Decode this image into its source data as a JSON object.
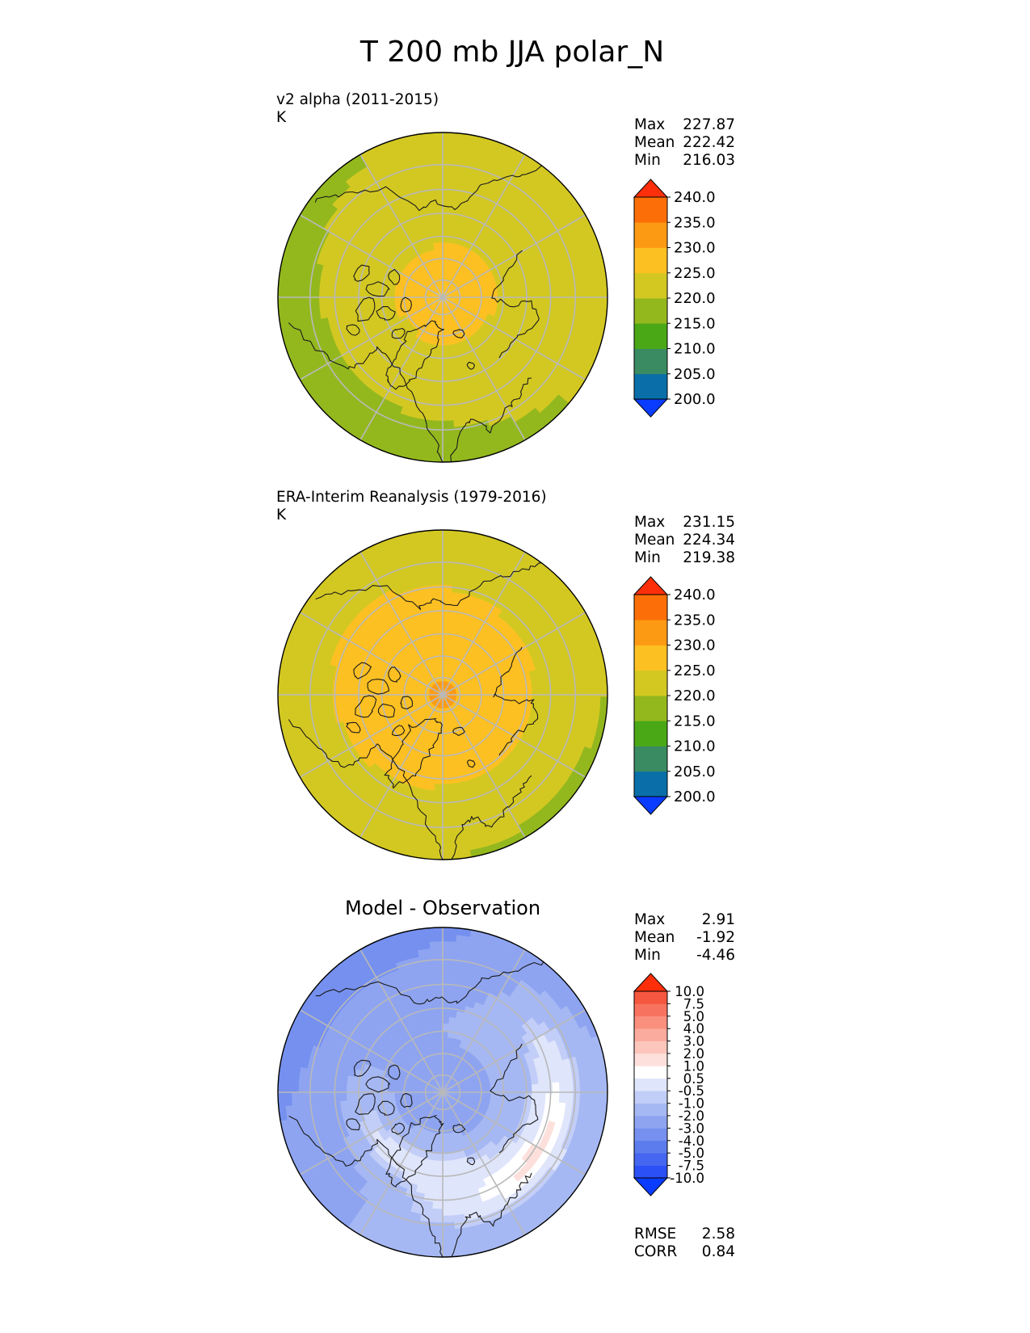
{
  "title": "T 200 mb JJA polar_N",
  "panels": [
    {
      "label_line1": "v2 alpha (2011-2015)",
      "label_line2": "K",
      "stats": [
        {
          "name": "Max",
          "value": "227.87"
        },
        {
          "name": "Mean",
          "value": "222.42"
        },
        {
          "name": "Min",
          "value": "216.03"
        }
      ]
    },
    {
      "label_line1": "ERA-Interim Reanalysis (1979-2016)",
      "label_line2": "K",
      "stats": [
        {
          "name": "Max",
          "value": "231.15"
        },
        {
          "name": "Mean",
          "value": "224.34"
        },
        {
          "name": "Min",
          "value": "219.38"
        }
      ]
    },
    {
      "title": "Model - Observation",
      "stats": [
        {
          "name": "Max",
          "value": "2.91"
        },
        {
          "name": "Mean",
          "value": "-1.92"
        },
        {
          "name": "Min",
          "value": "-4.46"
        }
      ],
      "metrics": [
        {
          "name": "RMSE",
          "value": "2.58"
        },
        {
          "name": "CORR",
          "value": "0.84"
        }
      ]
    }
  ],
  "chart_data": [
    {
      "type": "heatmap",
      "projection": "north polar stereographic",
      "title": "v2 alpha (2011-2015)",
      "units": "K",
      "levels": [
        200,
        205,
        210,
        215,
        220,
        225,
        230,
        235,
        240
      ],
      "colorbar_tick_labels": [
        "200.0",
        "205.0",
        "210.0",
        "215.0",
        "220.0",
        "225.0",
        "230.0",
        "235.0",
        "240.0"
      ],
      "colors": [
        "#0a3cff",
        "#0a6fa8",
        "#3a8a62",
        "#4aa817",
        "#93b81e",
        "#d3c822",
        "#fdc022",
        "#fd9a13",
        "#fc6f08",
        "#fd2f0a"
      ],
      "field": {
        "center_value": 227.5,
        "outer_value": 219.5,
        "amplitude": 3.0,
        "phase_deg": 140
      },
      "max": 227.87,
      "mean": 222.42,
      "min": 216.03
    },
    {
      "type": "heatmap",
      "projection": "north polar stereographic",
      "title": "ERA-Interim Reanalysis (1979-2016)",
      "units": "K",
      "levels": [
        200,
        205,
        210,
        215,
        220,
        225,
        230,
        235,
        240
      ],
      "colorbar_tick_labels": [
        "200.0",
        "205.0",
        "210.0",
        "215.0",
        "220.0",
        "225.0",
        "230.0",
        "235.0",
        "240.0"
      ],
      "colors": [
        "#0a3cff",
        "#0a6fa8",
        "#3a8a62",
        "#4aa817",
        "#93b81e",
        "#d3c822",
        "#fdc022",
        "#fd9a13",
        "#fc6f08",
        "#fd2f0a"
      ],
      "field": {
        "center_value": 231.0,
        "outer_value": 221.5,
        "amplitude": 2.0,
        "phase_deg": 40
      },
      "max": 231.15,
      "mean": 224.34,
      "min": 219.38
    },
    {
      "type": "heatmap",
      "projection": "north polar stereographic",
      "title": "Model - Observation",
      "units": "K",
      "levels": [
        -10,
        -7.5,
        -5,
        -4,
        -3,
        -2,
        -1,
        -0.5,
        0.5,
        1,
        2,
        3,
        4,
        5,
        7.5,
        10
      ],
      "colorbar_tick_labels": [
        "-10.0",
        "-7.5",
        "-5.0",
        "-4.0",
        "-3.0",
        "-2.0",
        "-1.0",
        "-0.5",
        "0.5",
        "1.0",
        "2.0",
        "3.0",
        "4.0",
        "5.0",
        "7.5",
        "10.0"
      ],
      "colors": [
        "#0a3cff",
        "#2b50f6",
        "#4466f0",
        "#5c7cee",
        "#7590ef",
        "#8ea4f1",
        "#a6b8f3",
        "#c2cef7",
        "#dfe5fb",
        "#ffffff",
        "#fde0dc",
        "#fcc6bc",
        "#fbab9d",
        "#fa8f7e",
        "#f8735f",
        "#f6573f",
        "#fd2f0a"
      ],
      "max": 2.91,
      "mean": -1.92,
      "min": -4.46,
      "rmse": 2.58,
      "corr": 0.84
    }
  ]
}
